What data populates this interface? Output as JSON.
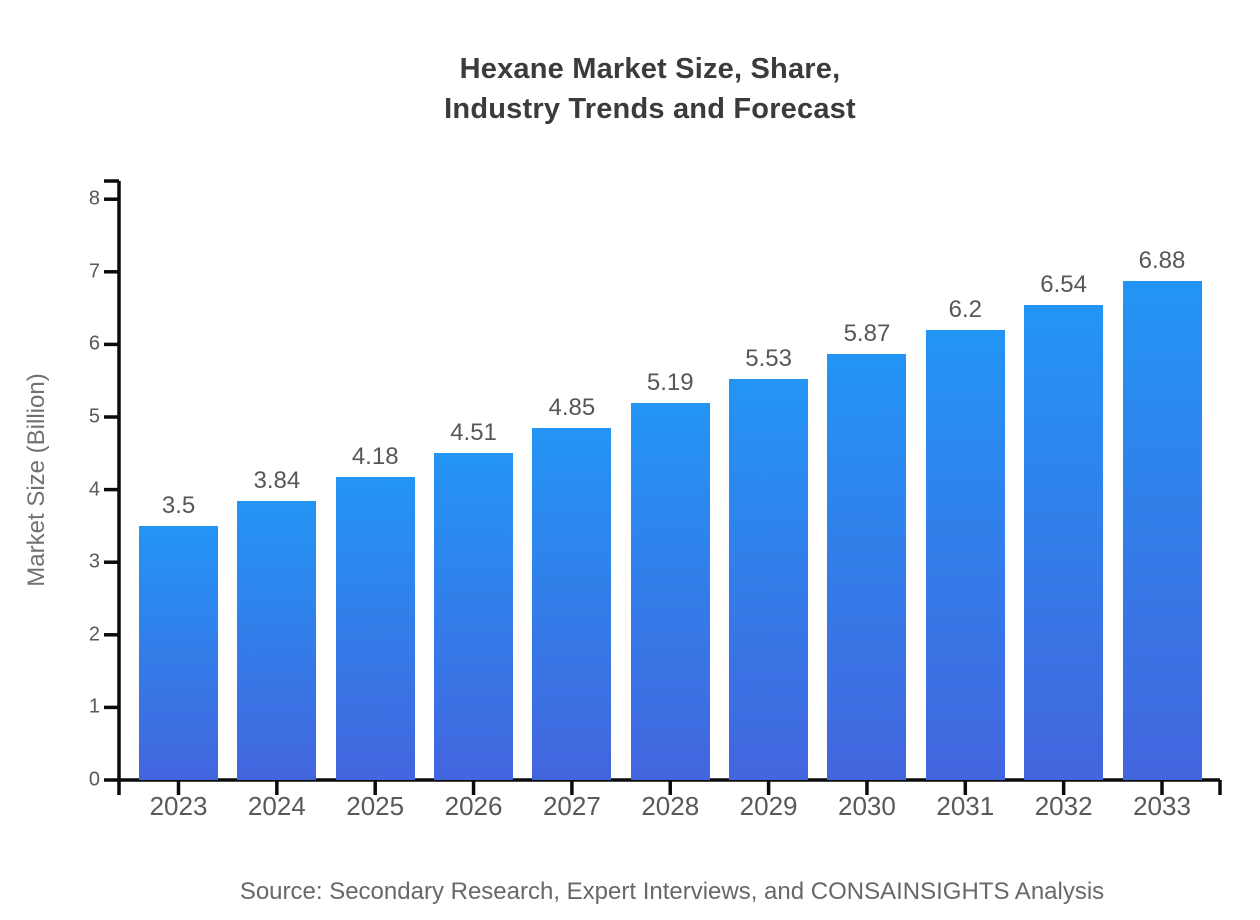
{
  "title": {
    "text": "Hexane Market Size, Share,\nIndustry Trends and Forecast"
  },
  "y_axis": {
    "label": "Market Size (Billion)"
  },
  "source": {
    "text": "Source: Secondary Research, Expert Interviews, and CONSAINSIGHTS Analysis"
  },
  "colors": {
    "bar_gradient_top": "#2395f4",
    "bar_gradient_bottom": "#4365de",
    "axis": "#0b0b0b",
    "tick_label": "#57595d",
    "value_label": "#55575b",
    "title": "#3a3b3d",
    "axis_title": "#717174",
    "source": "#66686c"
  },
  "chart_data": {
    "type": "bar",
    "categories": [
      "2023",
      "2024",
      "2025",
      "2026",
      "2027",
      "2028",
      "2029",
      "2030",
      "2031",
      "2032",
      "2033"
    ],
    "values": [
      3.5,
      3.84,
      4.18,
      4.51,
      4.85,
      5.19,
      5.53,
      5.87,
      6.2,
      6.54,
      6.88
    ],
    "value_labels": [
      "3.5",
      "3.84",
      "4.18",
      "4.51",
      "4.85",
      "5.19",
      "5.53",
      "5.87",
      "6.2",
      "6.54",
      "6.88"
    ],
    "title": "Hexane Market Size, Share, Industry Trends and Forecast",
    "xlabel": "",
    "ylabel": "Market Size (Billion)",
    "ylim": [
      0,
      8
    ],
    "y_ticks": [
      0,
      1,
      2,
      3,
      4,
      5,
      6,
      7,
      8
    ],
    "grid": false,
    "legend": false,
    "bar_label_position": "above"
  }
}
